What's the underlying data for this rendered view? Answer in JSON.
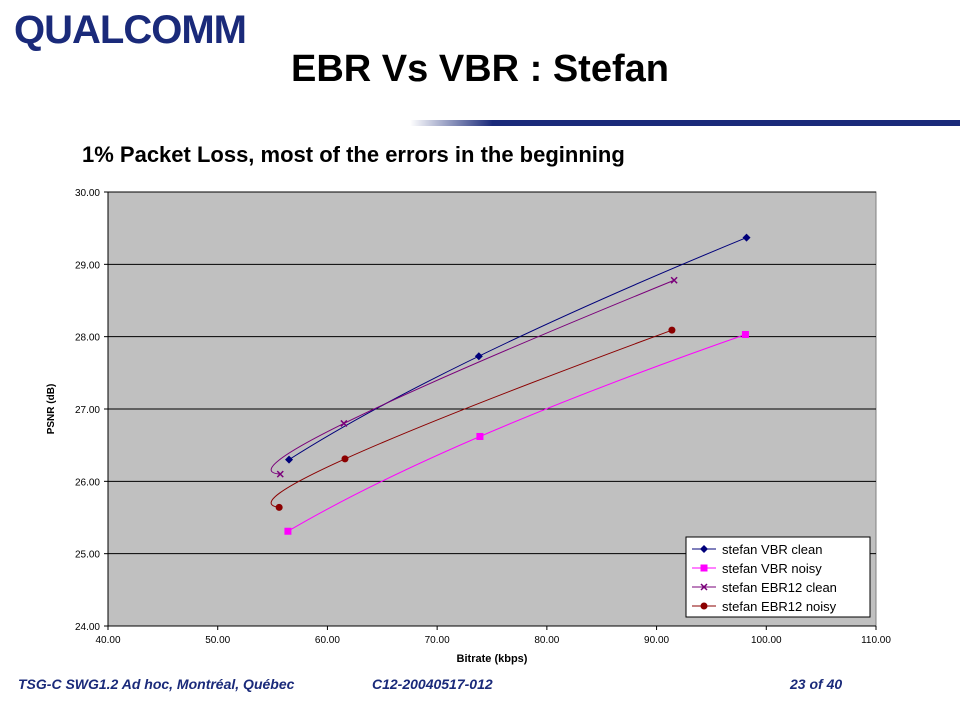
{
  "header": {
    "logo_text": "QUALCOMM",
    "title": "EBR Vs VBR : Stefan",
    "subtitle": "1% Packet Loss, most of the errors in the beginning"
  },
  "footer": {
    "left": "TSG-C SWG1.2 Ad hoc, Montréal, Québec",
    "middle": "C12-20040517-012",
    "right": "23 of 40"
  },
  "colors": {
    "brand": "#1a2a7a",
    "plot_bg": "#c0c0c0"
  },
  "chart_data": {
    "type": "line",
    "xlabel": "Bitrate (kbps)",
    "ylabel": "PSNR (dB)",
    "xlim": [
      40,
      110
    ],
    "ylim": [
      24,
      30
    ],
    "x_ticks": [
      "40.00",
      "50.00",
      "60.00",
      "70.00",
      "80.00",
      "90.00",
      "100.00",
      "110.00"
    ],
    "y_ticks": [
      "24.00",
      "25.00",
      "26.00",
      "27.00",
      "28.00",
      "29.00",
      "30.00"
    ],
    "grid": "horizontal",
    "legend_position": "bottom-right",
    "series": [
      {
        "name": "stefan VBR clean",
        "color": "#00007a",
        "marker": "diamond",
        "points": [
          [
            56.5,
            26.3
          ],
          [
            73.8,
            27.73
          ],
          [
            98.2,
            29.37
          ]
        ]
      },
      {
        "name": "stefan VBR noisy",
        "color": "#ff00ff",
        "marker": "square",
        "points": [
          [
            56.4,
            25.31
          ],
          [
            73.9,
            26.62
          ],
          [
            98.1,
            28.03
          ]
        ]
      },
      {
        "name": "stefan EBR12 clean",
        "color": "#7a007a",
        "marker": "x",
        "points": [
          [
            55.7,
            26.1
          ],
          [
            61.5,
            26.8
          ],
          [
            91.6,
            28.78
          ]
        ]
      },
      {
        "name": "stefan EBR12 noisy",
        "color": "#8b0000",
        "marker": "circle",
        "points": [
          [
            55.6,
            25.64
          ],
          [
            61.6,
            26.31
          ],
          [
            91.4,
            28.09
          ]
        ]
      }
    ]
  }
}
